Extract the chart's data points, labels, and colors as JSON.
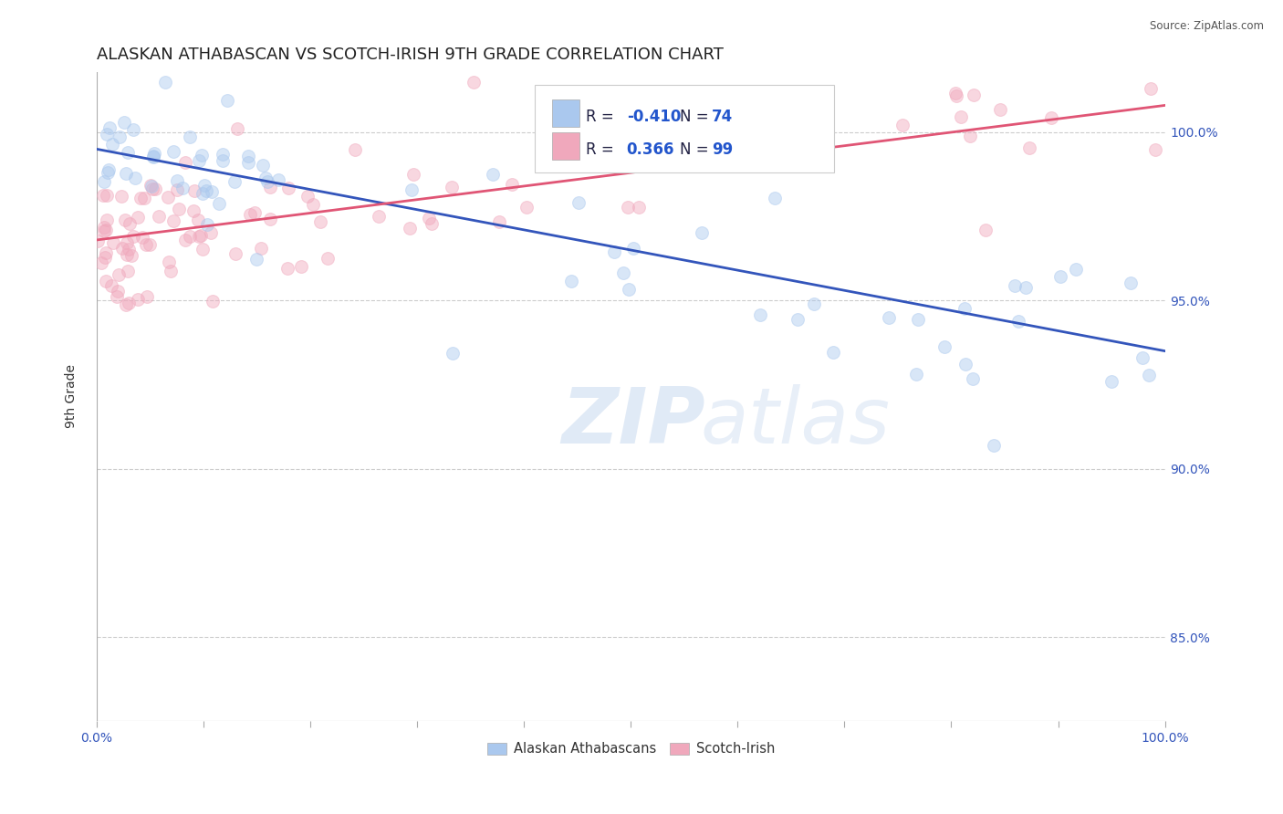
{
  "title": "ALASKAN ATHABASCAN VS SCOTCH-IRISH 9TH GRADE CORRELATION CHART",
  "source_text": "Source: ZipAtlas.com",
  "ylabel": "9th Grade",
  "xlim": [
    0.0,
    100.0
  ],
  "ylim": [
    82.5,
    101.8
  ],
  "right_yticks": [
    85.0,
    90.0,
    95.0,
    100.0
  ],
  "right_ytick_labels": [
    "85.0%",
    "90.0%",
    "95.0%",
    "100.0%"
  ],
  "legend_blue_label": "Alaskan Athabascans",
  "legend_pink_label": "Scotch-Irish",
  "legend_blue_r": "-0.410",
  "legend_blue_n": "74",
  "legend_pink_r": "0.366",
  "legend_pink_n": "99",
  "blue_color": "#aac8ee",
  "pink_color": "#f0a8bc",
  "blue_line_color": "#3355bb",
  "pink_line_color": "#e05575",
  "blue_trend_y_start": 99.5,
  "blue_trend_y_end": 93.5,
  "pink_trend_y_start": 96.8,
  "pink_trend_y_end": 100.8,
  "watermark_zip": "ZIP",
  "watermark_atlas": "atlas",
  "background_color": "#ffffff",
  "grid_color": "#cccccc",
  "title_fontsize": 13,
  "axis_fontsize": 10,
  "marker_size": 100,
  "marker_alpha": 0.45,
  "legend_fontsize": 12,
  "legend_r_color": "#2255cc",
  "legend_text_color": "#222244"
}
